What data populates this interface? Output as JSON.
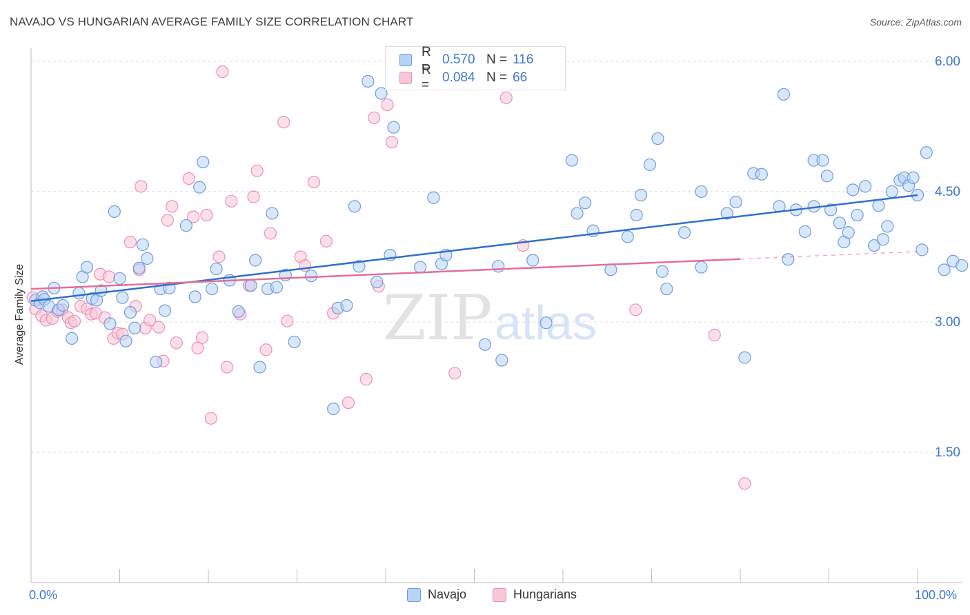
{
  "title": "NAVAJO VS HUNGARIAN AVERAGE FAMILY SIZE CORRELATION CHART",
  "source": "Source: ZipAtlas.com",
  "colors": {
    "navajo_fill": "#b9d3f5",
    "navajo_stroke": "#6b9de0",
    "navajo_line": "#2f6fce",
    "hungarian_fill": "#f9c6d7",
    "hungarian_stroke": "#eb91b0",
    "hungarian_line": "#e46e98",
    "grid": "#dcdcdc",
    "axis_text": "#3a78d4",
    "watermark": "#e4e4e4"
  },
  "legend": {
    "rows": [
      {
        "r_label": "R =",
        "r_value": "0.570",
        "n_label": "N =",
        "n_value": "116"
      },
      {
        "r_label": "R =",
        "r_value": "0.084",
        "n_label": "N =",
        "n_value": "66"
      }
    ]
  },
  "bottom_legend": {
    "navajo": "Navajo",
    "hungarians": "Hungarians"
  },
  "watermark": {
    "zip": "ZIP",
    "atlas": "atlas"
  },
  "chart_data": {
    "type": "scatter",
    "title": "NAVAJO VS HUNGARIAN AVERAGE FAMILY SIZE CORRELATION CHART",
    "xlabel": "",
    "ylabel": "Average Family Size",
    "xlim": [
      0,
      100
    ],
    "ylim": [
      0.0,
      6.15
    ],
    "x_tick_labels": [
      "0.0%",
      "100.0%"
    ],
    "y_ticks": [
      1.5,
      3.0,
      4.5,
      6.0
    ],
    "y_tick_labels": [
      "1.50",
      "3.00",
      "4.50",
      "6.00"
    ],
    "grid": true,
    "legend_position": "top-center",
    "series": [
      {
        "name": "Navajo",
        "R": 0.57,
        "N": 116,
        "trend": {
          "x0": 0,
          "y0": 3.24,
          "x1": 100,
          "y1": 4.46,
          "dashed_from": null
        },
        "points": [
          [
            0.5,
            3.25
          ],
          [
            1,
            3.22
          ],
          [
            1.3,
            3.29
          ],
          [
            1.5,
            3.26
          ],
          [
            2,
            3.18
          ],
          [
            2.6,
            3.39
          ],
          [
            3.1,
            3.14
          ],
          [
            3.6,
            3.19
          ],
          [
            4.6,
            2.81
          ],
          [
            5.4,
            3.33
          ],
          [
            5.8,
            3.52
          ],
          [
            6.3,
            3.63
          ],
          [
            6.9,
            3.27
          ],
          [
            7.4,
            3.25
          ],
          [
            7.9,
            3.36
          ],
          [
            8.9,
            2.98
          ],
          [
            9.4,
            4.27
          ],
          [
            10,
            3.5
          ],
          [
            10.3,
            3.28
          ],
          [
            10.7,
            2.78
          ],
          [
            11.2,
            3.11
          ],
          [
            11.7,
            2.93
          ],
          [
            12.2,
            3.62
          ],
          [
            12.6,
            3.89
          ],
          [
            13.1,
            3.73
          ],
          [
            14.1,
            2.54
          ],
          [
            14.6,
            3.38
          ],
          [
            15.6,
            3.39
          ],
          [
            15.1,
            3.13
          ],
          [
            17.5,
            4.11
          ],
          [
            18.5,
            3.29
          ],
          [
            19,
            4.55
          ],
          [
            19.4,
            4.84
          ],
          [
            20.4,
            3.38
          ],
          [
            20.9,
            3.61
          ],
          [
            22.4,
            3.48
          ],
          [
            23.4,
            3.12
          ],
          [
            24.8,
            3.42
          ],
          [
            25.3,
            3.71
          ],
          [
            25.8,
            2.48
          ],
          [
            26.7,
            3.38
          ],
          [
            27.2,
            4.25
          ],
          [
            27.7,
            3.4
          ],
          [
            28.7,
            3.54
          ],
          [
            29.7,
            2.77
          ],
          [
            31.6,
            3.53
          ],
          [
            34.1,
            2.0
          ],
          [
            34.6,
            3.16
          ],
          [
            35.6,
            3.19
          ],
          [
            36.5,
            4.33
          ],
          [
            37.0,
            3.64
          ],
          [
            38.0,
            5.77
          ],
          [
            39.0,
            3.46
          ],
          [
            39.5,
            5.63
          ],
          [
            40.5,
            3.77
          ],
          [
            40.9,
            5.24
          ],
          [
            43.9,
            3.63
          ],
          [
            45.4,
            4.43
          ],
          [
            46.3,
            3.67
          ],
          [
            46.8,
            3.77
          ],
          [
            51.2,
            2.74
          ],
          [
            53.1,
            2.56
          ],
          [
            52.7,
            3.64
          ],
          [
            56.6,
            3.71
          ],
          [
            58.1,
            2.99
          ],
          [
            61.6,
            4.25
          ],
          [
            61.0,
            4.86
          ],
          [
            62.5,
            4.37
          ],
          [
            63.4,
            4.05
          ],
          [
            65.4,
            3.6
          ],
          [
            67.3,
            3.98
          ],
          [
            68.3,
            4.23
          ],
          [
            68.8,
            4.46
          ],
          [
            69.8,
            4.81
          ],
          [
            70.7,
            5.11
          ],
          [
            71.2,
            3.58
          ],
          [
            71.7,
            3.38
          ],
          [
            73.7,
            4.03
          ],
          [
            75.6,
            4.5
          ],
          [
            75.6,
            3.63
          ],
          [
            78.5,
            4.25
          ],
          [
            79.5,
            4.38
          ],
          [
            80.5,
            2.59
          ],
          [
            81.5,
            4.71
          ],
          [
            82.4,
            4.7
          ],
          [
            84.4,
            4.33
          ],
          [
            84.9,
            5.62
          ],
          [
            85.4,
            3.72
          ],
          [
            86.3,
            4.29
          ],
          [
            87.3,
            4.04
          ],
          [
            88.3,
            4.33
          ],
          [
            88.3,
            4.86
          ],
          [
            89.3,
            4.86
          ],
          [
            89.8,
            4.68
          ],
          [
            90.2,
            4.29
          ],
          [
            91.2,
            4.14
          ],
          [
            91.7,
            3.92
          ],
          [
            92.2,
            4.03
          ],
          [
            92.7,
            4.52
          ],
          [
            93.2,
            4.23
          ],
          [
            94.1,
            4.56
          ],
          [
            95.1,
            3.88
          ],
          [
            95.6,
            4.34
          ],
          [
            96.1,
            3.95
          ],
          [
            96.6,
            4.1
          ],
          [
            97.1,
            4.5
          ],
          [
            98.0,
            4.63
          ],
          [
            98.5,
            4.66
          ],
          [
            99.0,
            4.57
          ],
          [
            99.5,
            4.66
          ],
          [
            100,
            4.46
          ],
          [
            100.5,
            3.83
          ],
          [
            101,
            4.95
          ],
          [
            103,
            3.6
          ],
          [
            104,
            3.7
          ],
          [
            105,
            3.65
          ]
        ]
      },
      {
        "name": "Hungarians",
        "R": 0.084,
        "N": 66,
        "trend": {
          "x0": 0,
          "y0": 3.38,
          "x1": 100,
          "y1": 3.81,
          "dashed_from": 80
        },
        "points": [
          [
            0.5,
            3.15
          ],
          [
            1.2,
            3.07
          ],
          [
            1.7,
            3.02
          ],
          [
            2.4,
            3.04
          ],
          [
            3.0,
            3.12
          ],
          [
            3.5,
            3.14
          ],
          [
            4.2,
            3.05
          ],
          [
            4.5,
            2.99
          ],
          [
            4.9,
            3.01
          ],
          [
            5.6,
            3.18
          ],
          [
            6.3,
            3.15
          ],
          [
            6.8,
            3.09
          ],
          [
            7.3,
            3.1
          ],
          [
            7.8,
            3.55
          ],
          [
            8.3,
            3.05
          ],
          [
            8.8,
            3.52
          ],
          [
            9.3,
            2.81
          ],
          [
            9.8,
            2.87
          ],
          [
            10.3,
            2.86
          ],
          [
            11.2,
            3.92
          ],
          [
            11.8,
            3.18
          ],
          [
            12.2,
            3.6
          ],
          [
            12.4,
            4.56
          ],
          [
            12.9,
            2.93
          ],
          [
            13.4,
            3.02
          ],
          [
            14.4,
            2.94
          ],
          [
            14.9,
            2.55
          ],
          [
            15.4,
            4.17
          ],
          [
            15.9,
            4.33
          ],
          [
            16.4,
            2.76
          ],
          [
            17.8,
            4.65
          ],
          [
            18.3,
            4.21
          ],
          [
            18.8,
            2.7
          ],
          [
            19.3,
            2.82
          ],
          [
            19.8,
            4.23
          ],
          [
            20.3,
            1.89
          ],
          [
            21.2,
            3.75
          ],
          [
            21.6,
            5.88
          ],
          [
            22.1,
            2.48
          ],
          [
            22.6,
            4.39
          ],
          [
            23.6,
            3.09
          ],
          [
            24.6,
            3.42
          ],
          [
            25.1,
            4.44
          ],
          [
            25.5,
            4.74
          ],
          [
            26.5,
            2.68
          ],
          [
            27.0,
            4.02
          ],
          [
            28.5,
            5.3
          ],
          [
            28.9,
            3.01
          ],
          [
            30.4,
            3.75
          ],
          [
            30.9,
            3.65
          ],
          [
            31.9,
            4.61
          ],
          [
            33.3,
            3.93
          ],
          [
            34.1,
            3.1
          ],
          [
            35.8,
            2.07
          ],
          [
            37.8,
            2.34
          ],
          [
            38.7,
            5.35
          ],
          [
            39.2,
            3.41
          ],
          [
            40.2,
            5.5
          ],
          [
            40.7,
            5.07
          ],
          [
            47.8,
            2.41
          ],
          [
            53.6,
            5.58
          ],
          [
            55.5,
            3.88
          ],
          [
            68.2,
            3.14
          ],
          [
            77.1,
            2.85
          ],
          [
            80.5,
            1.14
          ],
          [
            0.2,
            3.28
          ]
        ]
      }
    ]
  }
}
